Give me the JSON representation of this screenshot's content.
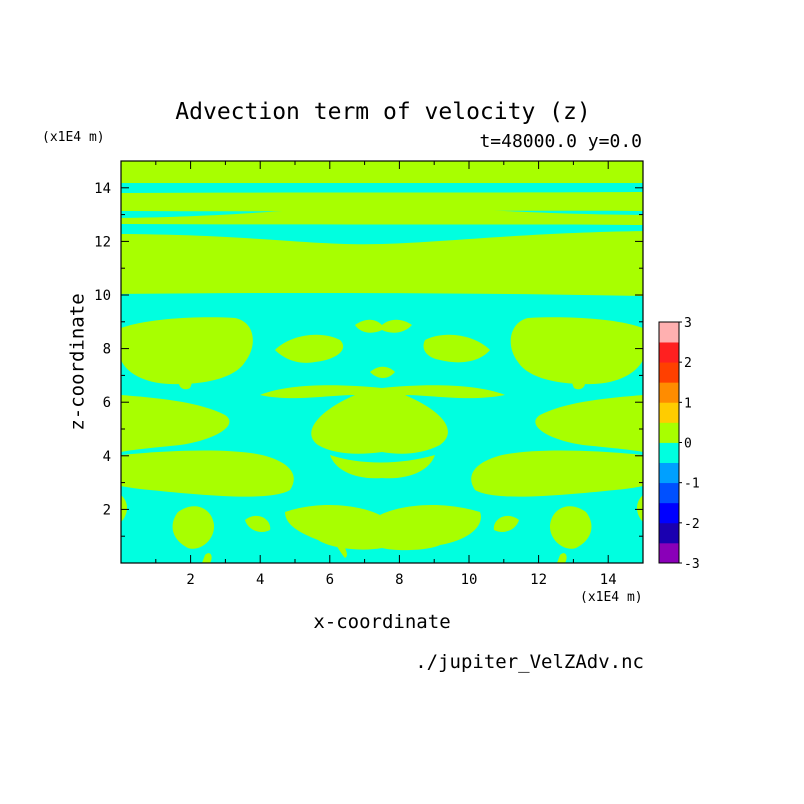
{
  "header": {
    "title": "Advection term of velocity (z)",
    "subtitle": "t=48000.0 y=0.0"
  },
  "axes": {
    "y_unit": "(x1E4 m)",
    "x_unit": "(x1E4 m)"
  },
  "footer": {
    "source_file": "./jupiter_VelZAdv.nc"
  },
  "chart_data": {
    "type": "heatmap",
    "title": "Advection term of velocity (z)",
    "subtitle": "t=48000.0 y=0.0",
    "xlabel": "x-coordinate",
    "ylabel": "z-coordinate",
    "x_unit": "(x1E4 m)",
    "y_unit": "(x1E4 m)",
    "xlim": [
      0,
      15
    ],
    "ylim": [
      0,
      15
    ],
    "x_ticks": [
      2,
      4,
      6,
      8,
      10,
      12,
      14
    ],
    "y_ticks": [
      2,
      4,
      6,
      8,
      10,
      12,
      14
    ],
    "colorbar": {
      "levels": [
        -3,
        -2.5,
        -2,
        -1.5,
        -1,
        -0.5,
        0,
        0.5,
        1,
        1.5,
        2,
        2.5,
        3
      ],
      "tick_labels": [
        "3",
        "2",
        "1",
        "0",
        "-1",
        "-2",
        "-3"
      ],
      "colors": [
        "#8a00b8",
        "#1a00b0",
        "#0000ff",
        "#0050ff",
        "#00a0ff",
        "#00ffe0",
        "#a8ff00",
        "#ffcc00",
        "#ff8c00",
        "#ff4000",
        "#ff2020",
        "#ffb0b0"
      ]
    },
    "field": {
      "dominant_levels": [
        0,
        -0.5
      ],
      "regions": [
        {
          "z": [
            14.7,
            15.0
          ],
          "value": "0 to 0.5"
        },
        {
          "z": [
            14.0,
            14.7
          ],
          "value": "-0.5 to 0"
        },
        {
          "z": [
            13.6,
            14.0
          ],
          "value": "0 to 0.5"
        },
        {
          "z": [
            13.0,
            13.6
          ],
          "value": "0 to 0.5"
        },
        {
          "z": [
            12.8,
            13.0
          ],
          "value": "-0.5 to 0"
        },
        {
          "z": [
            12.6,
            12.8
          ],
          "value": "0 to 0.5"
        },
        {
          "z": [
            12.4,
            12.6
          ],
          "value": "-0.5 to 0"
        },
        {
          "z": [
            10.0,
            12.4
          ],
          "value": "0 to 0.5"
        },
        {
          "z": [
            0.0,
            10.0
          ],
          "value": "mixed -0.5 to 0.5"
        }
      ]
    }
  }
}
